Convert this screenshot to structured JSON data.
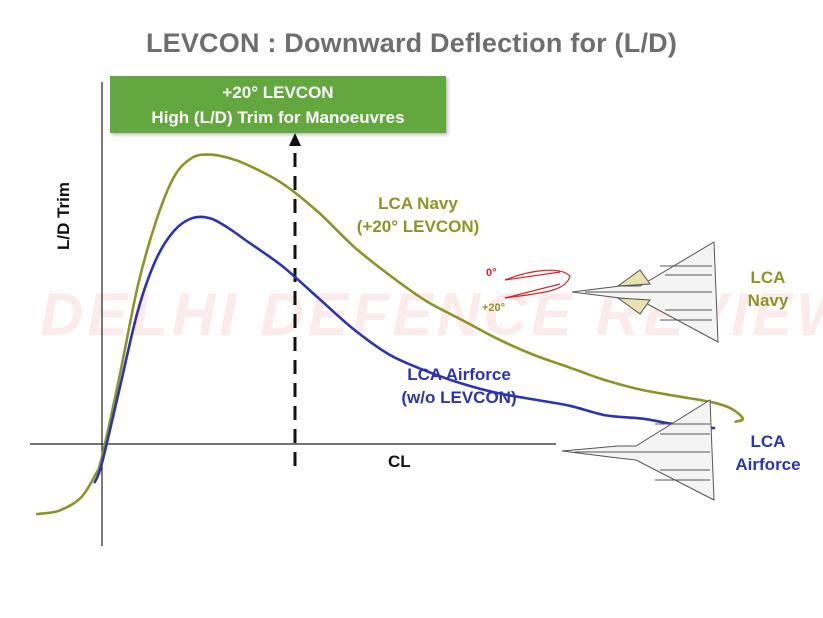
{
  "title": "LEVCON : Downward Deflection for (L/D)",
  "banner": {
    "line1": "+20° LEVCON",
    "line2": "High (L/D) Trim for Manoeuvres"
  },
  "watermark": "DELHI DEFENCE REVIEW",
  "levcon_angles": {
    "zero": "0°",
    "plus20": "+20°"
  },
  "aircraft_labels": {
    "navy": {
      "line1": "LCA",
      "line2": "Navy"
    },
    "airforce": {
      "line1": "LCA",
      "line2": "Airforce"
    }
  },
  "colors": {
    "navy_series": "#8c9523",
    "airforce_series": "#2a33b4",
    "banner": "#62a83f",
    "title": "#6e6e6e"
  },
  "chart_data": {
    "type": "line",
    "title": "LEVCON : Downward Deflection for (L/D)",
    "xlabel": "CL",
    "ylabel": "L/D Trim",
    "grid": false,
    "axis_ticks": "none",
    "marker": {
      "label": "+20° LEVCON High (L/D) Trim for Manoeuvres",
      "style": "dashed vertical line with arrow"
    },
    "series": [
      {
        "name": "LCA Navy (+20° LEVCON)",
        "label_line1": "LCA Navy",
        "label_line2": "(+20° LEVCON)",
        "color": "#8c9523",
        "x": [
          -0.18,
          -0.12,
          -0.06,
          -0.02,
          0.0,
          0.05,
          0.1,
          0.15,
          0.2,
          0.25,
          0.3,
          0.35,
          0.4,
          0.5,
          0.6,
          0.7,
          0.8,
          0.9,
          1.0,
          1.1,
          1.2,
          1.3,
          1.4,
          1.5,
          1.6,
          1.7,
          1.75,
          1.78,
          1.76
        ],
        "y": [
          -0.22,
          -0.21,
          -0.17,
          -0.1,
          -0.04,
          0.22,
          0.5,
          0.7,
          0.84,
          0.9,
          0.91,
          0.9,
          0.88,
          0.82,
          0.73,
          0.62,
          0.53,
          0.45,
          0.39,
          0.33,
          0.28,
          0.24,
          0.2,
          0.17,
          0.15,
          0.13,
          0.11,
          0.08,
          0.07
        ]
      },
      {
        "name": "LCA Airforce (w/o LEVCON)",
        "label_line1": "LCA Airforce",
        "label_line2": "(w/o LEVCON)",
        "color": "#2a33b4",
        "x": [
          -0.02,
          0.0,
          0.05,
          0.1,
          0.15,
          0.2,
          0.25,
          0.3,
          0.35,
          0.4,
          0.5,
          0.6,
          0.7,
          0.8,
          0.9,
          1.0,
          1.1,
          1.2,
          1.3,
          1.4,
          1.5,
          1.6,
          1.7
        ],
        "y": [
          -0.12,
          -0.06,
          0.18,
          0.42,
          0.58,
          0.67,
          0.71,
          0.71,
          0.68,
          0.64,
          0.56,
          0.46,
          0.36,
          0.28,
          0.23,
          0.19,
          0.16,
          0.14,
          0.12,
          0.09,
          0.08,
          0.06,
          0.05
        ]
      }
    ]
  }
}
